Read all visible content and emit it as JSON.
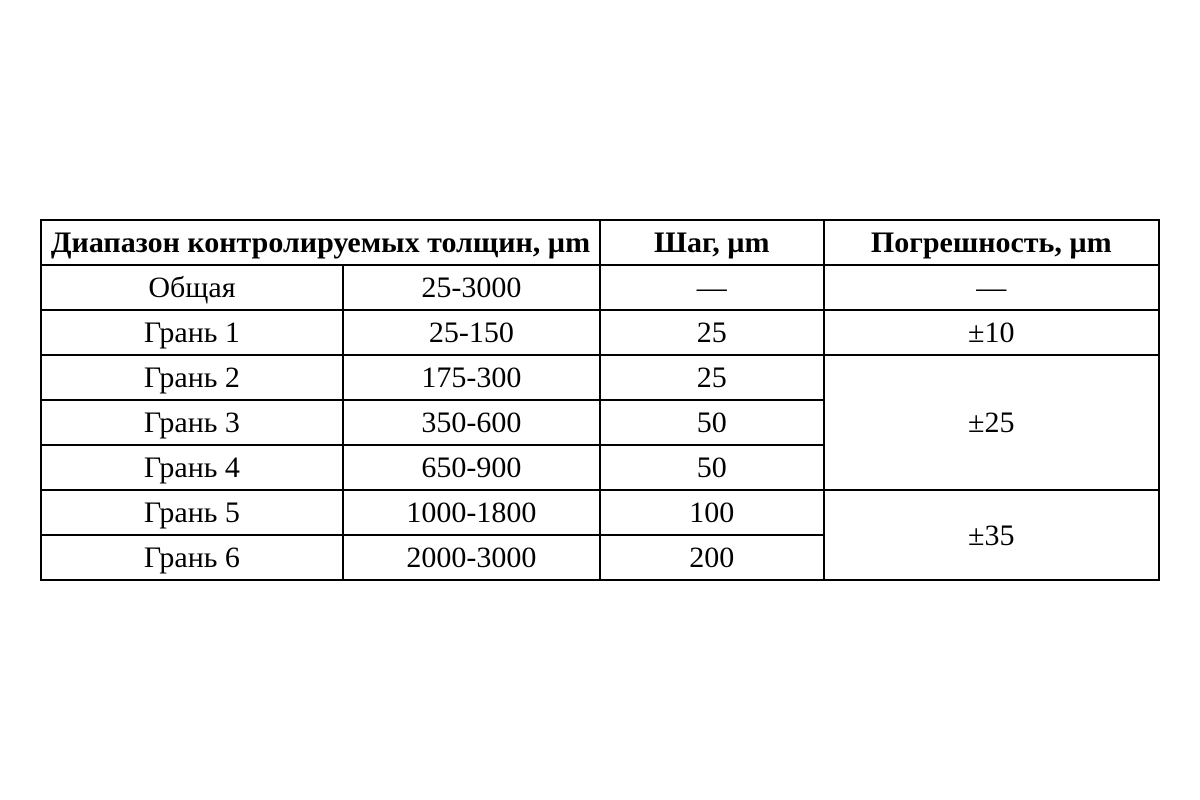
{
  "table": {
    "type": "table",
    "background_color": "#ffffff",
    "border_color": "#000000",
    "text_color": "#000000",
    "font_family": "Times New Roman",
    "header_fontsize": 30,
    "cell_fontsize": 30,
    "headers": {
      "range": "Диапазон контролируемых толщин, µm",
      "step": "Шаг, µm",
      "error": "Погрешность, µm"
    },
    "rows": [
      {
        "label": "Общая",
        "range": "25-3000",
        "step": "—",
        "error": "—",
        "error_rowspan": 1
      },
      {
        "label": "Грань 1",
        "range": "25-150",
        "step": "25",
        "error": "±10",
        "error_rowspan": 1
      },
      {
        "label": "Грань 2",
        "range": "175-300",
        "step": "25",
        "error": "±25",
        "error_rowspan": 3
      },
      {
        "label": "Грань 3",
        "range": "350-600",
        "step": "50"
      },
      {
        "label": "Грань 4",
        "range": "650-900",
        "step": "50"
      },
      {
        "label": "Грань 5",
        "range": "1000-1800",
        "step": "100",
        "error": "±35",
        "error_rowspan": 2
      },
      {
        "label": "Грань 6",
        "range": "2000-3000",
        "step": "200"
      }
    ],
    "column_widths_percent": [
      27,
      23,
      20,
      30
    ]
  }
}
